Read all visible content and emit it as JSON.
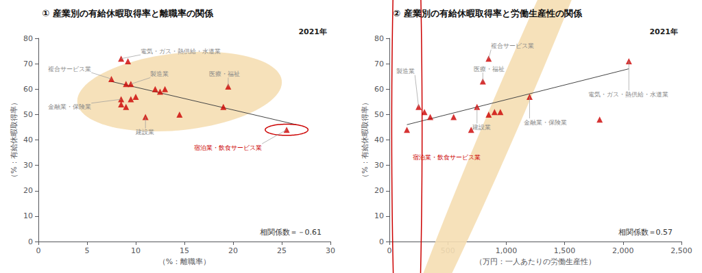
{
  "chart_data": [
    {
      "type": "scatter",
      "title": "① 産業別の有給休暇取得率と離職率の関係",
      "year": "2021年",
      "correlation": "相関係数＝－0.61",
      "xlabel": "（%：離職率）",
      "ylabel": "（%：有給休暇取得率）",
      "x": [
        8.5,
        9.2,
        7.5,
        9.5,
        9.0,
        10.0,
        9.5,
        8.5,
        9.0,
        12.0,
        12.5,
        13.0,
        11.0,
        14.5,
        19.5,
        19.0,
        25.5,
        8.5
      ],
      "values": [
        72,
        71,
        64,
        62,
        62,
        57,
        56,
        54,
        53,
        60,
        59,
        60,
        49,
        50,
        61,
        53,
        44,
        56
      ],
      "color": "#CC0000",
      "marker": "triangle",
      "grid": false,
      "xlim": [
        0,
        30
      ],
      "ylim": [
        0,
        80
      ],
      "xticks": [
        0,
        5,
        10,
        15,
        20,
        25,
        30
      ],
      "yticks": [
        0,
        10,
        20,
        30,
        40,
        50,
        60,
        70,
        80
      ],
      "trendline": {
        "x": [
          7.5,
          26.5
        ],
        "values": [
          63,
          46
        ],
        "color": "#444444"
      },
      "ellipse": {
        "cx": 14.5,
        "cy": 59,
        "w": 20,
        "h": 32,
        "angle": -15,
        "color": "#F5DEB3"
      },
      "circle": {
        "x": 25.5,
        "y": 44,
        "r": 2.2,
        "color": "#CC0000"
      },
      "annotations": [
        {
          "text": "電気・ガス・熱供給・水道業",
          "x": 8.5,
          "y": 72,
          "text_x": 10.5,
          "text_y": 75,
          "arrow": true,
          "color": "#888888"
        },
        {
          "text": "複合サービス業",
          "x": 7.5,
          "y": 64,
          "text_x": 1.0,
          "text_y": 68,
          "arrow": true,
          "color": "#888888"
        },
        {
          "text": "製造業",
          "x": 9.5,
          "y": 62,
          "text_x": 11.5,
          "text_y": 66,
          "arrow": true,
          "color": "#888888"
        },
        {
          "text": "建設業",
          "x": 11.0,
          "y": 49,
          "text_x": 10.0,
          "text_y": 43,
          "arrow": true,
          "color": "#888888"
        },
        {
          "text": "医療・福祉",
          "x": 19.5,
          "y": 61,
          "text_x": 17.5,
          "text_y": 66,
          "arrow": true,
          "color": "#888888"
        },
        {
          "text": "宿泊業・飲食サービス業",
          "x": 25.5,
          "y": 44,
          "text_x": 16.0,
          "text_y": 37,
          "arrow": true,
          "color": "#CC0000"
        },
        {
          "text": "金融業・保険業",
          "x": 8.5,
          "y": 56,
          "text_x": 1.0,
          "text_y": 53,
          "arrow": true,
          "color": "#888888"
        }
      ]
    },
    {
      "type": "scatter",
      "title": "② 産業別の有給休暇取得率と労働生産性の関係",
      "year": "2021年",
      "correlation": "相関係数＝0.57",
      "xlabel": "（万円：一人あたりの労働生産性）",
      "ylabel": "（%：有給休暇取得率）",
      "x": [
        150,
        250,
        300,
        350,
        550,
        700,
        750,
        800,
        850,
        900,
        850,
        950,
        1200,
        1800,
        2050
      ],
      "values": [
        44,
        53,
        51,
        49,
        49,
        44,
        53,
        63,
        50,
        51,
        72,
        51,
        57,
        48,
        71
      ],
      "color": "#CC0000",
      "marker": "triangle",
      "grid": false,
      "xlim": [
        0,
        2500
      ],
      "ylim": [
        0,
        80
      ],
      "xticks": [
        0,
        500,
        1000,
        1500,
        2000,
        2500
      ],
      "yticks": [
        0,
        10,
        20,
        30,
        40,
        50,
        60,
        70,
        80
      ],
      "trendline": {
        "x": [
          150,
          2050
        ],
        "values": [
          46,
          68
        ],
        "color": "#444444"
      },
      "ellipse": {
        "cx": 1050,
        "cy": 56,
        "w": 2100,
        "h": 33,
        "angle": 6,
        "color": "#F5DEB3"
      },
      "circle": {
        "x": 150,
        "y": 44,
        "r": 130,
        "color": "#CC0000"
      },
      "annotations": [
        {
          "text": "宿泊業・飲食サービス業",
          "x": 150,
          "y": 44,
          "text_x": 200,
          "text_y": 33,
          "arrow": false,
          "color": "#CC0000"
        },
        {
          "text": "製造業",
          "x": 250,
          "y": 53,
          "text_x": 60,
          "text_y": 67,
          "arrow": true,
          "color": "#888888"
        },
        {
          "text": "建設業",
          "x": 750,
          "y": 53,
          "text_x": 710,
          "text_y": 45,
          "arrow": true,
          "color": "#888888"
        },
        {
          "text": "医療・福祉",
          "x": 800,
          "y": 63,
          "text_x": 720,
          "text_y": 68,
          "arrow": true,
          "color": "#888888"
        },
        {
          "text": "複合サービス業",
          "x": 850,
          "y": 72,
          "text_x": 870,
          "text_y": 77,
          "arrow": true,
          "color": "#888888"
        },
        {
          "text": "金融業・保険業",
          "x": 1200,
          "y": 57,
          "text_x": 1150,
          "text_y": 47,
          "arrow": true,
          "color": "#888888"
        },
        {
          "text": "電気・ガス・熱供給・水道業",
          "x": 2050,
          "y": 71,
          "text_x": 1700,
          "text_y": 58,
          "arrow": true,
          "color": "#888888"
        }
      ]
    }
  ]
}
